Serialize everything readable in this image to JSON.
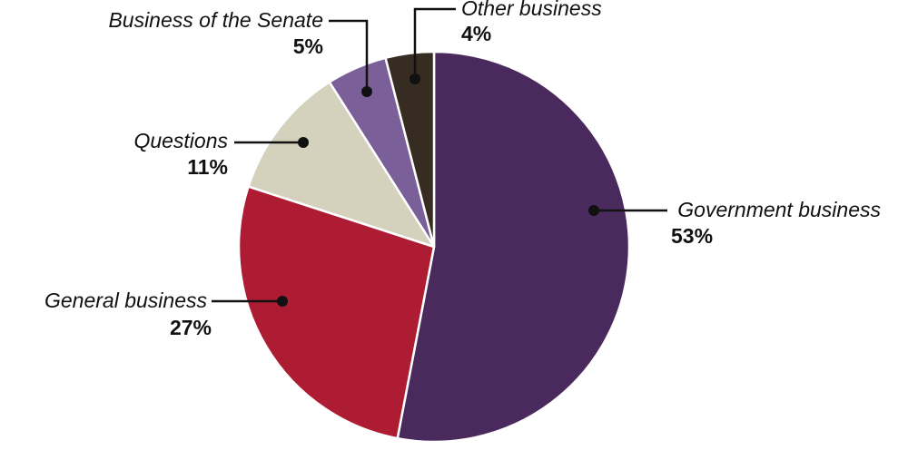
{
  "chart_data": {
    "type": "pie",
    "slices": [
      {
        "name": "Government business",
        "value": 53,
        "label": "53%",
        "color": "#4a2a5c"
      },
      {
        "name": "General business",
        "value": 27,
        "label": "27%",
        "color": "#ae1c33"
      },
      {
        "name": "Questions",
        "value": 11,
        "label": "11%",
        "color": "#d4d1bd"
      },
      {
        "name": "Business of the Senate",
        "value": 5,
        "label": "5%",
        "color": "#7b5f98"
      },
      {
        "name": "Other business",
        "value": 4,
        "label": "4%",
        "color": "#362c22"
      }
    ],
    "start": "12 o'clock",
    "direction": "clockwise",
    "slice_border_color": "#ffffff",
    "leader_line_color": "#111111"
  }
}
